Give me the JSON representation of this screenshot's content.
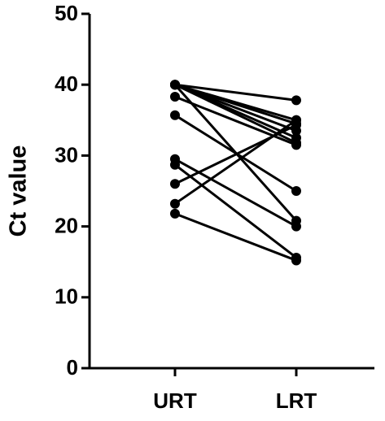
{
  "chart_data": {
    "type": "paired-line",
    "ylabel": "Ct value",
    "categories": [
      "URT",
      "LRT"
    ],
    "ylim": [
      0,
      50
    ],
    "yticks": [
      0,
      10,
      20,
      30,
      40,
      50
    ],
    "color": "#000000",
    "series": [
      {
        "values": [
          40,
          37.8
        ]
      },
      {
        "values": [
          40,
          35
        ]
      },
      {
        "values": [
          40,
          34.5
        ]
      },
      {
        "values": [
          40,
          33.5
        ]
      },
      {
        "values": [
          40,
          32.5
        ]
      },
      {
        "values": [
          40,
          31.8
        ]
      },
      {
        "values": [
          40,
          20.8
        ]
      },
      {
        "values": [
          38.3,
          31.5
        ]
      },
      {
        "values": [
          35.7,
          25
        ]
      },
      {
        "values": [
          29.5,
          20
        ]
      },
      {
        "values": [
          28.7,
          15.6
        ]
      },
      {
        "values": [
          26,
          34.3
        ]
      },
      {
        "values": [
          23.2,
          35
        ]
      },
      {
        "values": [
          21.8,
          15.2
        ]
      }
    ]
  }
}
